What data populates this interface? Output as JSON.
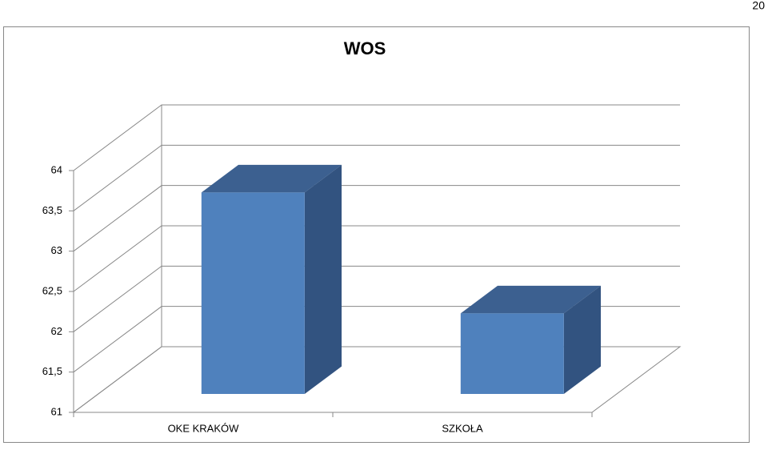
{
  "page_number": "20",
  "chart_data": {
    "type": "bar3d",
    "title": "WOS",
    "categories": [
      "OKE KRAKÓW",
      "SZKOŁA"
    ],
    "values": [
      63.5,
      62
    ],
    "color": "#4f81bd",
    "ylim": [
      61,
      64
    ],
    "yticks": [
      61,
      {
        "value": 61.5,
        "label": "61,5"
      },
      62,
      {
        "value": 62.5,
        "label": "62,5"
      },
      63,
      {
        "value": 63.5,
        "label": "63,5"
      },
      64
    ],
    "grid": true
  }
}
